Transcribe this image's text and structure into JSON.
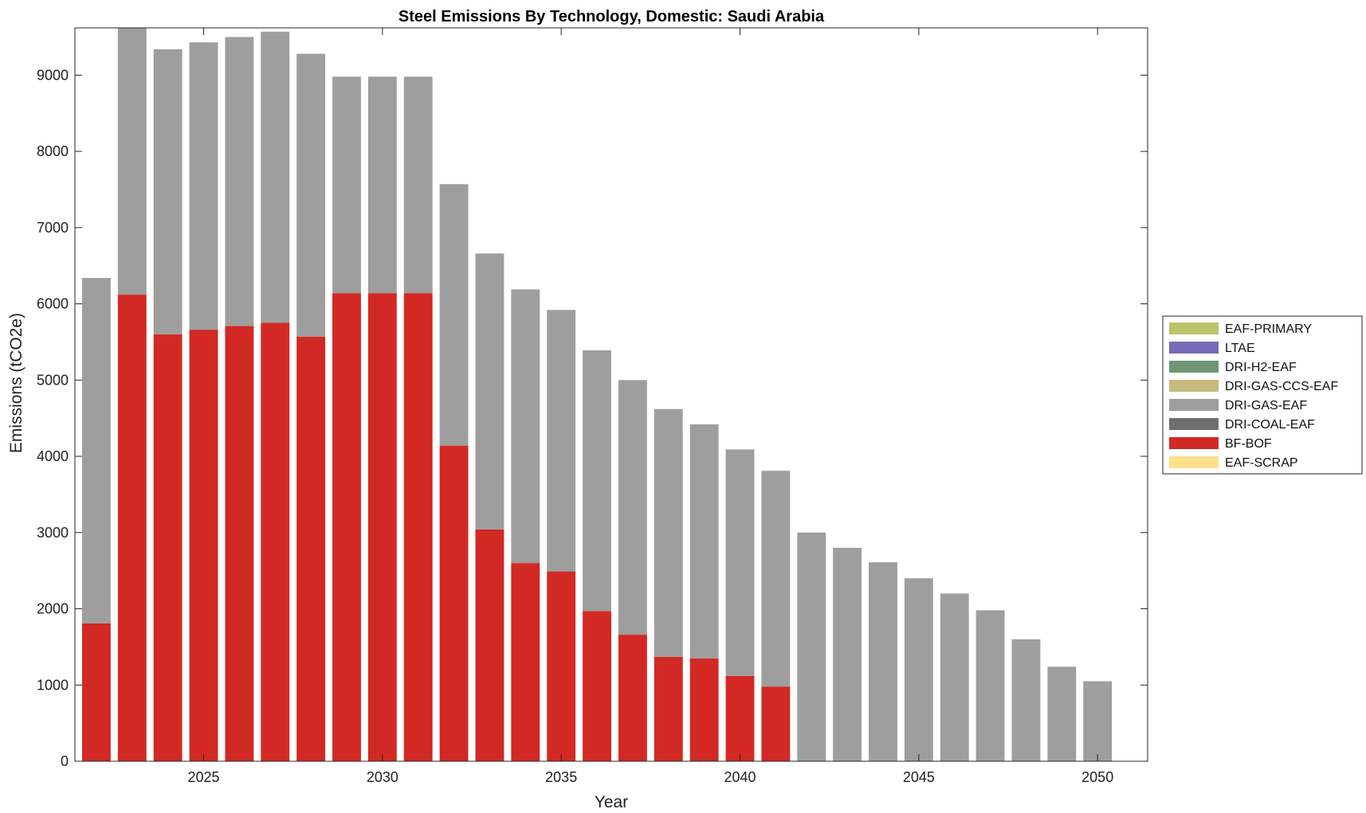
{
  "chart_data": {
    "type": "bar",
    "stacked": true,
    "title": "Steel Emissions By Technology, Domestic: Saudi Arabia",
    "xlabel": "Year",
    "ylabel": "Emissions (tCO2e)",
    "x": [
      2022,
      2023,
      2024,
      2025,
      2026,
      2027,
      2028,
      2029,
      2030,
      2031,
      2032,
      2033,
      2034,
      2035,
      2036,
      2037,
      2038,
      2039,
      2040,
      2041,
      2042,
      2043,
      2044,
      2045,
      2046,
      2047,
      2048,
      2049,
      2050
    ],
    "xlim": [
      2021.4,
      2051.4
    ],
    "ylim": [
      0,
      9620
    ],
    "xticks": [
      2025,
      2030,
      2035,
      2040,
      2045,
      2050
    ],
    "yticks": [
      0,
      1000,
      2000,
      3000,
      4000,
      5000,
      6000,
      7000,
      8000,
      9000
    ],
    "grid": false,
    "legend_position": "outside-right",
    "series": [
      {
        "name": "EAF-SCRAP",
        "color": "#ffe08a",
        "values": [
          0,
          0,
          0,
          0,
          0,
          0,
          0,
          0,
          0,
          0,
          0,
          0,
          0,
          0,
          0,
          0,
          0,
          0,
          0,
          0,
          0,
          0,
          0,
          0,
          0,
          0,
          0,
          0,
          0
        ]
      },
      {
        "name": "BF-BOF",
        "color": "#d22924",
        "values": [
          1810,
          6120,
          5600,
          5660,
          5710,
          5750,
          5570,
          6140,
          6140,
          6140,
          4140,
          3040,
          2600,
          2490,
          1970,
          1660,
          1370,
          1350,
          1120,
          980,
          0,
          0,
          0,
          0,
          0,
          0,
          0,
          0,
          0
        ]
      },
      {
        "name": "DRI-COAL-EAF",
        "color": "#6f6f6f",
        "values": [
          0,
          0,
          0,
          0,
          0,
          0,
          0,
          0,
          0,
          0,
          0,
          0,
          0,
          0,
          0,
          0,
          0,
          0,
          0,
          0,
          0,
          0,
          0,
          0,
          0,
          0,
          0,
          0,
          0
        ]
      },
      {
        "name": "DRI-GAS-EAF",
        "color": "#9e9e9e",
        "values": [
          4530,
          3500,
          3740,
          3770,
          3790,
          3820,
          3710,
          2840,
          2840,
          2840,
          3430,
          3620,
          3590,
          3430,
          3420,
          3340,
          3250,
          3070,
          2970,
          2830,
          3000,
          2800,
          2610,
          2400,
          2200,
          1980,
          1600,
          1240,
          1050
        ]
      },
      {
        "name": "DRI-GAS-CCS-EAF",
        "color": "#c7bb7b",
        "values": [
          0,
          0,
          0,
          0,
          0,
          0,
          0,
          0,
          0,
          0,
          0,
          0,
          0,
          0,
          0,
          0,
          0,
          0,
          0,
          0,
          0,
          0,
          0,
          0,
          0,
          0,
          0,
          0,
          0
        ]
      },
      {
        "name": "DRI-H2-EAF",
        "color": "#6e9672",
        "values": [
          0,
          0,
          0,
          0,
          0,
          0,
          0,
          0,
          0,
          0,
          0,
          0,
          0,
          0,
          0,
          0,
          0,
          0,
          0,
          0,
          0,
          0,
          0,
          0,
          0,
          0,
          0,
          0,
          0
        ]
      },
      {
        "name": "LTAE",
        "color": "#776ab6",
        "values": [
          0,
          0,
          0,
          0,
          0,
          0,
          0,
          0,
          0,
          0,
          0,
          0,
          0,
          0,
          0,
          0,
          0,
          0,
          0,
          0,
          0,
          0,
          0,
          0,
          0,
          0,
          0,
          0,
          0
        ]
      },
      {
        "name": "EAF-PRIMARY",
        "color": "#bac46b",
        "values": [
          0,
          0,
          0,
          0,
          0,
          0,
          0,
          0,
          0,
          0,
          0,
          0,
          0,
          0,
          0,
          0,
          0,
          0,
          0,
          0,
          0,
          0,
          0,
          0,
          0,
          0,
          0,
          0,
          0
        ]
      }
    ],
    "legend_order": [
      "EAF-PRIMARY",
      "LTAE",
      "DRI-H2-EAF",
      "DRI-GAS-CCS-EAF",
      "DRI-GAS-EAF",
      "DRI-COAL-EAF",
      "BF-BOF",
      "EAF-SCRAP"
    ]
  }
}
